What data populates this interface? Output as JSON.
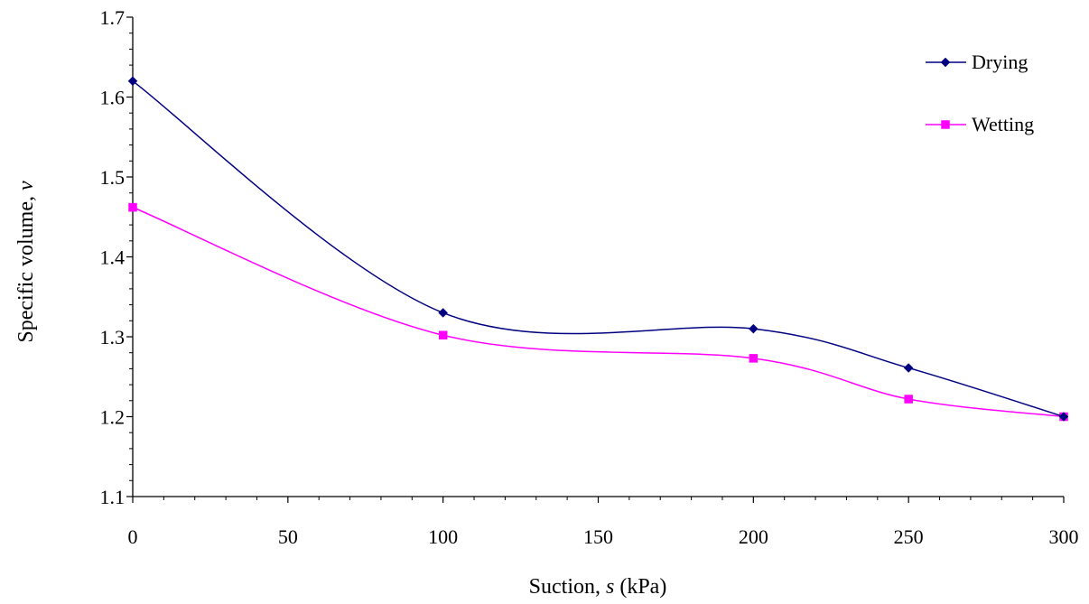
{
  "chart_data": {
    "type": "line",
    "title": "",
    "xlabel": "Suction, s (kPa)",
    "xlabel_parts": {
      "prefix": "Suction, ",
      "symbol": "s",
      "suffix": " (kPa)"
    },
    "ylabel": "Specific volume, v",
    "ylabel_parts": {
      "prefix": "Specific volume, ",
      "symbol": "v"
    },
    "xlim": [
      0,
      300
    ],
    "ylim": [
      1.1,
      1.7
    ],
    "xticks": [
      0,
      50,
      100,
      150,
      200,
      250,
      300
    ],
    "yticks": [
      1.1,
      1.2,
      1.3,
      1.4,
      1.5,
      1.6,
      1.7
    ],
    "xtick_labels": [
      "0",
      "50",
      "100",
      "150",
      "200",
      "250",
      "300"
    ],
    "ytick_labels": [
      "1.1",
      "1.2",
      "1.3",
      "1.4",
      "1.5",
      "1.6",
      "1.7"
    ],
    "grid": false,
    "legend_position": "top-right",
    "smoothed": true,
    "series": [
      {
        "name": "Drying",
        "color": "#000080",
        "marker": "diamond",
        "x": [
          0,
          100,
          200,
          250,
          300
        ],
        "y": [
          1.62,
          1.33,
          1.31,
          1.261,
          1.2
        ]
      },
      {
        "name": "Wetting",
        "color": "#FF00FF",
        "marker": "square",
        "x": [
          0,
          100,
          200,
          250,
          300
        ],
        "y": [
          1.462,
          1.302,
          1.273,
          1.222,
          1.2
        ]
      }
    ]
  }
}
